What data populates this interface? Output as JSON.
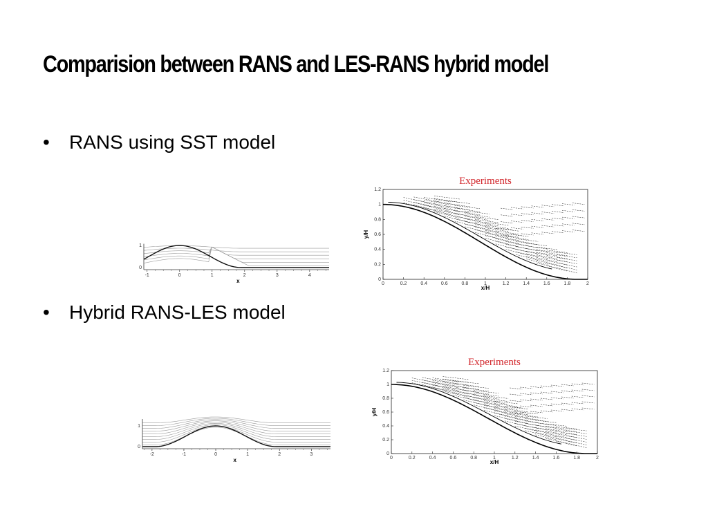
{
  "slide": {
    "title": "Comparision between RANS and LES-RANS hybrid model",
    "bullets": [
      {
        "marker": "•",
        "text": "RANS using SST model"
      },
      {
        "marker": "•",
        "text": "Hybrid RANS-LES model"
      }
    ]
  },
  "figures": {
    "rans_flow": {
      "xlabel": "x",
      "xticks": [
        "-1",
        "0",
        "1",
        "2",
        "3",
        "4"
      ],
      "yticks": [
        "0",
        "1"
      ]
    },
    "rans_experiments": {
      "title": "Experiments",
      "xlabel": "x/H",
      "ylabel": "y/H",
      "xticks": [
        "0",
        "0.2",
        "0.4",
        "0.6",
        "0.8",
        "1",
        "1.2",
        "1.4",
        "1.6",
        "1.8",
        "2"
      ],
      "yticks": [
        "0",
        "0.2",
        "0.4",
        "0.6",
        "0.8",
        "1",
        "1.2"
      ]
    },
    "hybrid_flow": {
      "xlabel": "x",
      "xticks": [
        "-2",
        "-1",
        "0",
        "1",
        "2",
        "3"
      ],
      "yticks": [
        "0",
        "1"
      ]
    },
    "hybrid_experiments": {
      "title": "Experiments",
      "xlabel": "x/H",
      "ylabel": "y/H",
      "xticks": [
        "0",
        "0.2",
        "0.4",
        "0.6",
        "0.8",
        "1",
        "1.2",
        "1.4",
        "1.6",
        "1.8",
        "2"
      ],
      "yticks": [
        "0",
        "0.2",
        "0.4",
        "0.6",
        "0.8",
        "1",
        "1.2"
      ]
    }
  }
}
